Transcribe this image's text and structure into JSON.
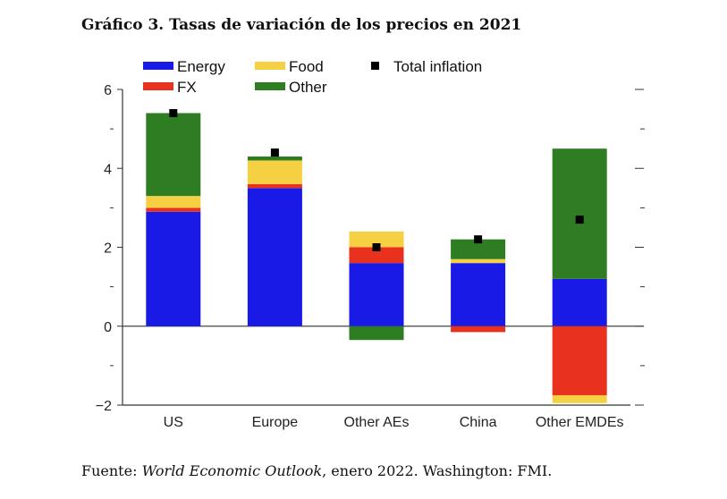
{
  "page": {
    "title": "Gráfico 3. Tasas de variación de los precios en 2021",
    "source_prefix": "Fuente: ",
    "source_italic": "World Economic Outlook",
    "source_suffix": ", enero 2022. Washington: FMI."
  },
  "chart_data": {
    "type": "bar",
    "stacked": true,
    "categories": [
      "US",
      "Europe",
      "Other AEs",
      "China",
      "Other EMDEs"
    ],
    "series": [
      {
        "name": "Energy",
        "color": "#1a1ae6",
        "values": [
          2.9,
          3.5,
          1.6,
          1.6,
          1.2
        ]
      },
      {
        "name": "FX",
        "color": "#e8321e",
        "values": [
          0.1,
          0.1,
          0.4,
          -0.15,
          -1.75
        ]
      },
      {
        "name": "Food",
        "color": "#f5d042",
        "values": [
          0.3,
          0.6,
          0.4,
          0.1,
          -0.2
        ]
      },
      {
        "name": "Other",
        "color": "#2f7d23",
        "values": [
          2.1,
          0.1,
          -0.35,
          0.5,
          3.3
        ]
      }
    ],
    "total_inflation": {
      "name": "Total inflation",
      "color": "#000000",
      "values": [
        5.4,
        4.4,
        2.0,
        2.2,
        2.7
      ]
    },
    "legend_order": [
      "Energy",
      "Food",
      "Total inflation",
      "FX",
      "Other"
    ],
    "ylim": [
      -2,
      6
    ],
    "yticks": [
      -2,
      0,
      2,
      4,
      6
    ],
    "ytick_labels": [
      "−2",
      "0",
      "2",
      "4",
      "6"
    ],
    "minor_ticks": [
      -1,
      1,
      3,
      5
    ],
    "xlabel": "",
    "ylabel": "",
    "grid": false,
    "legend_position": "top-left"
  }
}
